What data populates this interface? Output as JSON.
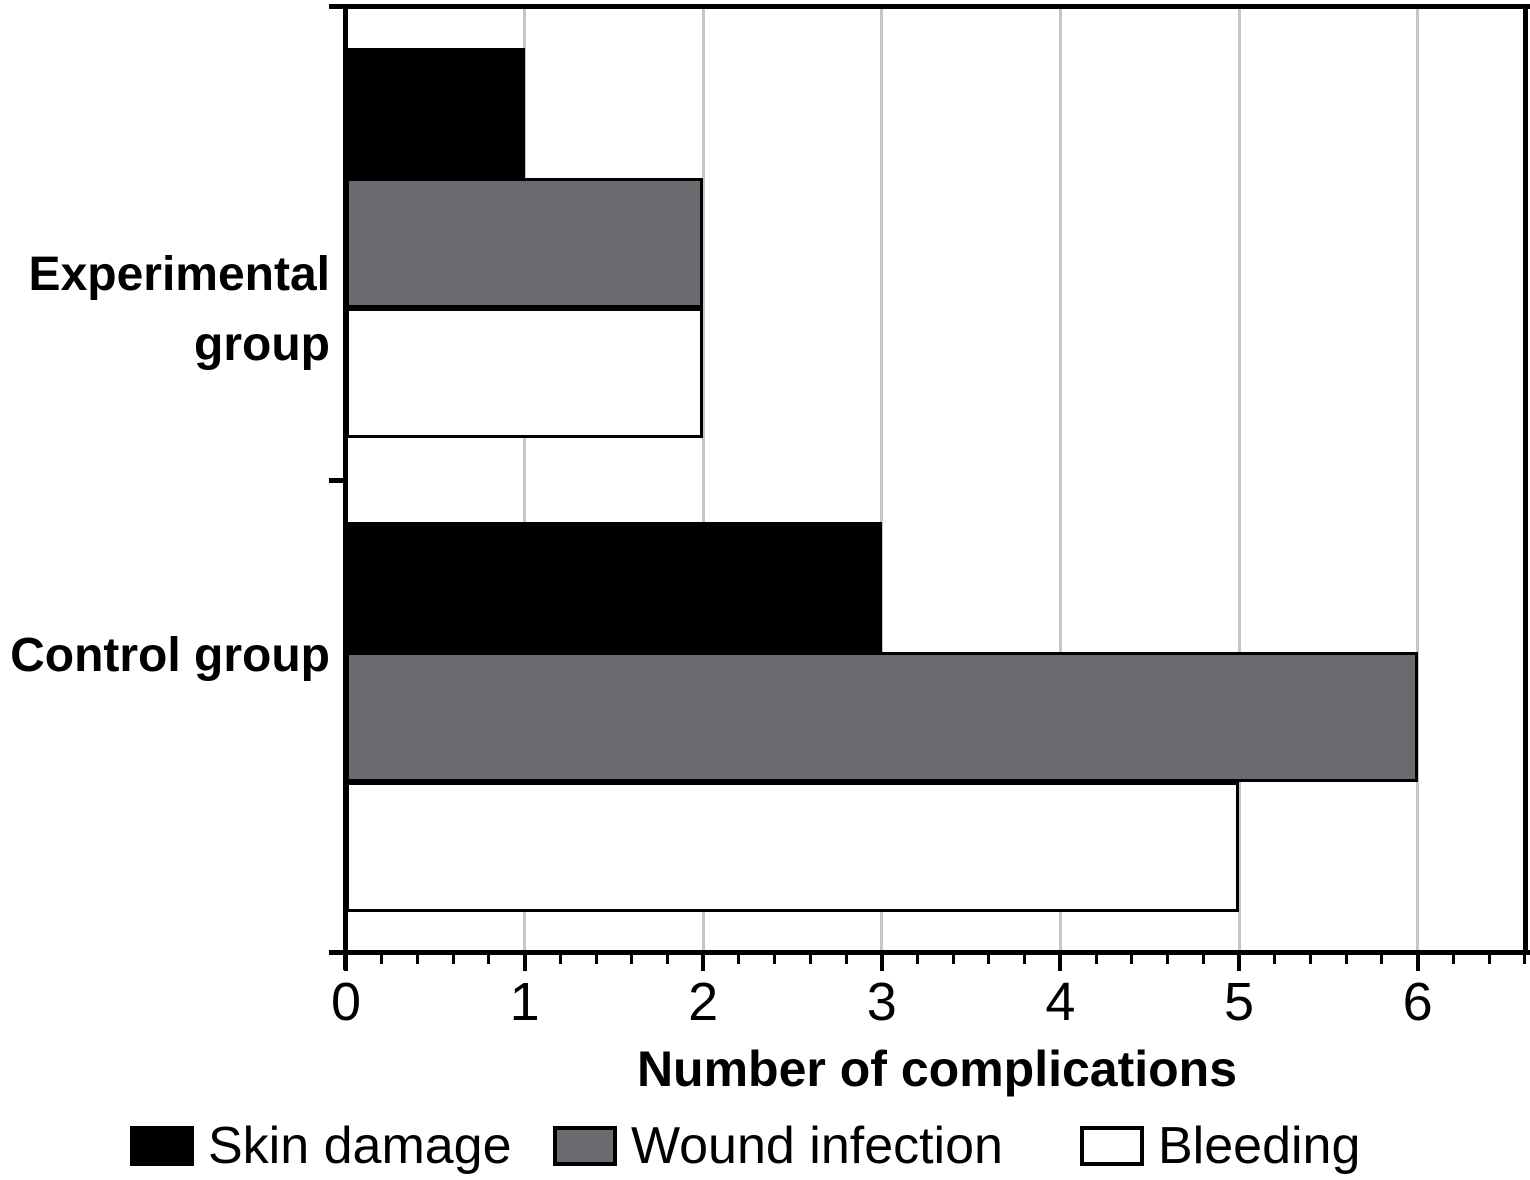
{
  "chart_data": {
    "type": "bar",
    "orientation": "horizontal",
    "xlabel": "Number of complications",
    "categories": [
      "Experimental group",
      "Control group"
    ],
    "series": [
      {
        "name": "Skin damage",
        "fill": "#000000",
        "edge": "#000000",
        "values": [
          1,
          3
        ]
      },
      {
        "name": "Wound infection",
        "fill": "#696b6f",
        "edge": "#000000",
        "values": [
          2,
          6
        ]
      },
      {
        "name": "Bleeding",
        "fill": "#ffffff",
        "edge": "#000000",
        "values": [
          2,
          5
        ]
      }
    ],
    "xlim": [
      0,
      6.6
    ],
    "xticks": [
      0,
      1,
      2,
      3,
      4,
      5,
      6
    ],
    "minor_tick_step": 0.2,
    "grid": "vertical",
    "gridline_color": "#c6c6c6",
    "axis_color": "#000000",
    "legend_position": "bottom",
    "legend_items": [
      "Skin damage",
      "Wound infection",
      "Bleeding"
    ]
  }
}
